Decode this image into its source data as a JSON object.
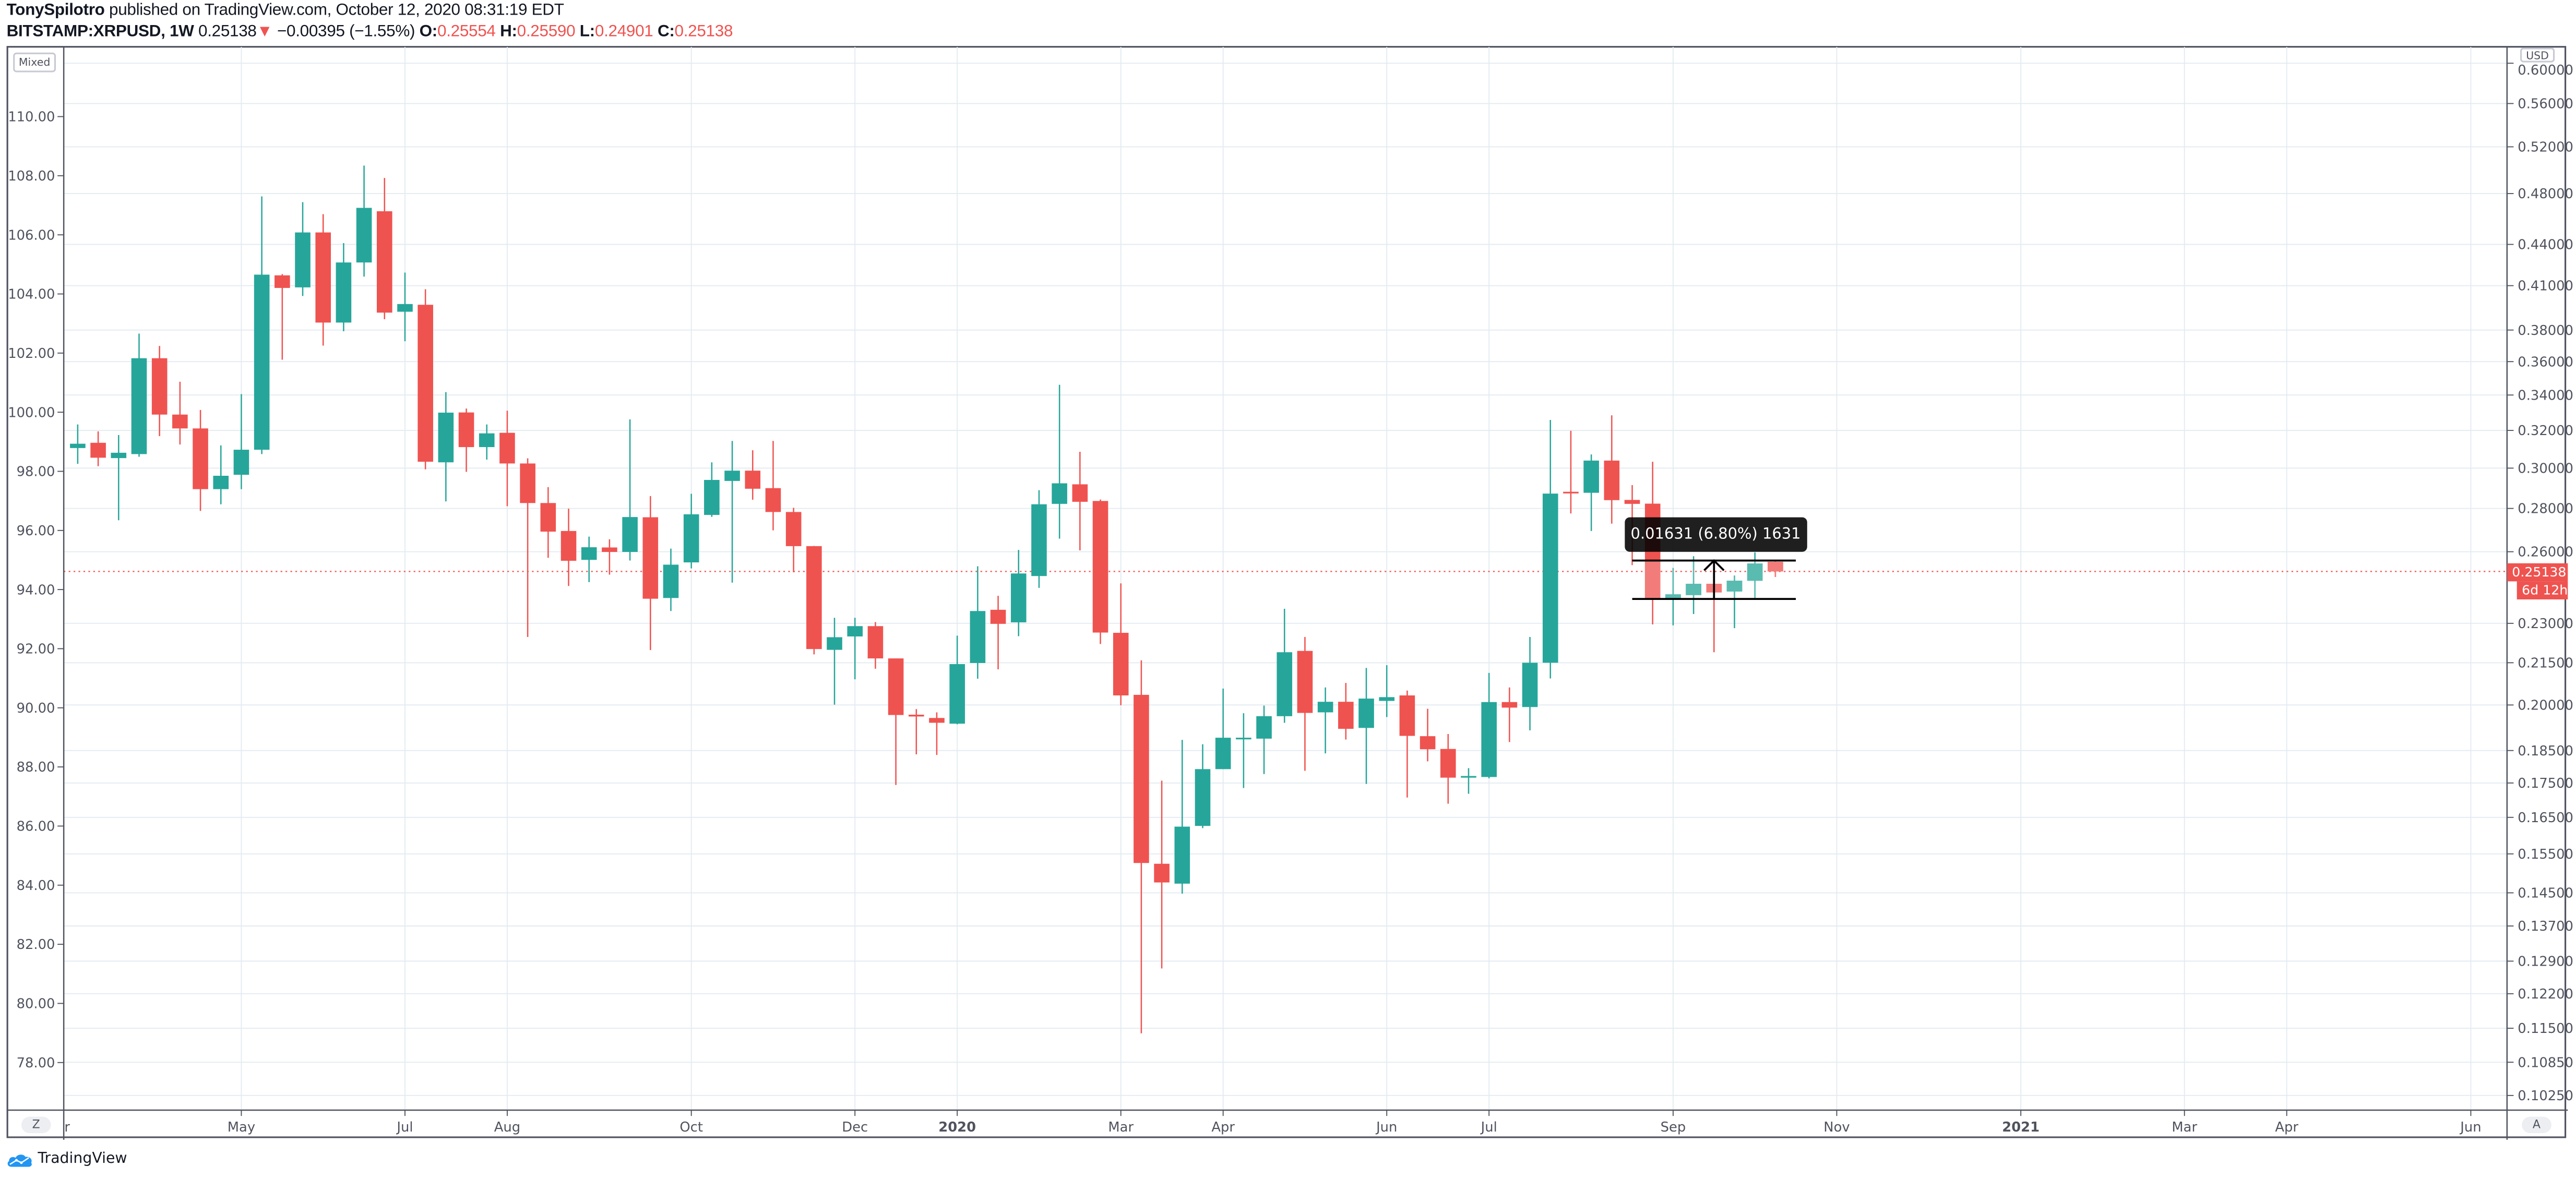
{
  "header": {
    "author": "TonySpilotro",
    "published": " published on TradingView.com, October 12, 2020 08:31:19 EDT",
    "symbol": "BITSTAMP:XRPUSD, 1W",
    "last": "0.25138",
    "direction_icon": "▼",
    "change": "−0.00395 (−1.55%)",
    "ohlc": [
      {
        "label": "O:",
        "value": "0.25554"
      },
      {
        "label": "H:",
        "value": "0.25590"
      },
      {
        "label": "L:",
        "value": "0.24901"
      },
      {
        "label": "C:",
        "value": "0.25138"
      }
    ]
  },
  "left_scale": {
    "mode_label": "Mixed",
    "ticks": [
      "110.00",
      "108.00",
      "106.00",
      "104.00",
      "102.00",
      "100.00",
      "98.00",
      "96.00",
      "94.00",
      "92.00",
      "90.00",
      "88.00",
      "86.00",
      "84.00",
      "82.00",
      "80.00",
      "78.00"
    ],
    "reset_button": "Z"
  },
  "right_scale": {
    "currency_label": "USD",
    "ticks": [
      "0.60000",
      "0.56000",
      "0.52000",
      "0.48000",
      "0.44000",
      "0.41000",
      "0.38000",
      "0.36000",
      "0.34000",
      "0.32000",
      "0.30000",
      "0.28000",
      "0.26000",
      "0.23000",
      "0.21500",
      "0.20000",
      "0.18500",
      "0.17500",
      "0.16500",
      "0.15500",
      "0.14500",
      "0.13700",
      "0.12900",
      "0.12200",
      "0.11500",
      "0.10850",
      "0.10250"
    ],
    "last_price_label": "0.25138",
    "countdown_label": "6d 12h",
    "auto_button": "A"
  },
  "time_axis": {
    "ticks": [
      {
        "label": "Mar",
        "date": "2019-03-04",
        "bold": false
      },
      {
        "label": "May",
        "date": "2019-05-06",
        "bold": false
      },
      {
        "label": "Jul",
        "date": "2019-07-01",
        "bold": false
      },
      {
        "label": "Aug",
        "date": "2019-08-05",
        "bold": false
      },
      {
        "label": "Oct",
        "date": "2019-10-07",
        "bold": false
      },
      {
        "label": "Dec",
        "date": "2019-12-02",
        "bold": false
      },
      {
        "label": "2020",
        "date": "2020-01-06",
        "bold": true
      },
      {
        "label": "Mar",
        "date": "2020-03-02",
        "bold": false
      },
      {
        "label": "Apr",
        "date": "2020-04-06",
        "bold": false
      },
      {
        "label": "Jun",
        "date": "2020-06-01",
        "bold": false
      },
      {
        "label": "Jul",
        "date": "2020-07-06",
        "bold": false
      },
      {
        "label": "Sep",
        "date": "2020-09-07",
        "bold": false
      },
      {
        "label": "Nov",
        "date": "2020-11-02",
        "bold": false
      },
      {
        "label": "2021",
        "date": "2021-01-04",
        "bold": true
      },
      {
        "label": "Mar",
        "date": "2021-03-01",
        "bold": false
      },
      {
        "label": "Apr",
        "date": "2021-04-05",
        "bold": false
      },
      {
        "label": "Jun",
        "date": "2021-06-07",
        "bold": false
      }
    ]
  },
  "measure": {
    "label": "0.01631 (6.80%) 1631",
    "from_date": "2020-08-24",
    "to_date": "2020-10-19",
    "low_price": 0.2398,
    "high_price": 0.2561
  },
  "colors": {
    "up": "#26a69a",
    "down": "#ef5350",
    "up_faded": "#5abbb1",
    "down_faded": "#f27c79",
    "grid": "#e3ebf1",
    "axis_text": "#50535e",
    "last_price": "#ef5350"
  },
  "footer": {
    "brand": "TradingView"
  },
  "chart_data": {
    "type": "candlestick",
    "symbol": "BITSTAMP:XRPUSD",
    "interval": "1W",
    "y_scale": "log",
    "ylim": [
      0.1,
      0.605
    ],
    "grid": true,
    "last_price": 0.25138,
    "columns": [
      "date",
      "open",
      "high",
      "low",
      "close"
    ],
    "candles": [
      [
        "2019-03-11",
        0.3105,
        0.3233,
        0.3022,
        0.3128
      ],
      [
        "2019-03-18",
        0.3133,
        0.3195,
        0.301,
        0.3054
      ],
      [
        "2019-03-25",
        0.3052,
        0.3175,
        0.2744,
        0.308
      ],
      [
        "2019-04-01",
        0.3073,
        0.3777,
        0.3059,
        0.3621
      ],
      [
        "2019-04-08",
        0.3621,
        0.3698,
        0.3169,
        0.3288
      ],
      [
        "2019-04-15",
        0.3288,
        0.3478,
        0.3124,
        0.3211
      ],
      [
        "2019-04-22",
        0.3211,
        0.3314,
        0.2788,
        0.2894
      ],
      [
        "2019-04-29",
        0.2894,
        0.3119,
        0.282,
        0.2961
      ],
      [
        "2019-05-06",
        0.2966,
        0.3405,
        0.2894,
        0.3096
      ],
      [
        "2019-05-13",
        0.3096,
        0.4777,
        0.3073,
        0.4178
      ],
      [
        "2019-05-20",
        0.4173,
        0.4182,
        0.3612,
        0.4084
      ],
      [
        "2019-05-27",
        0.4088,
        0.473,
        0.4028,
        0.4491
      ],
      [
        "2019-06-03",
        0.4491,
        0.4634,
        0.37,
        0.3849
      ],
      [
        "2019-06-10",
        0.3849,
        0.441,
        0.3792,
        0.4266
      ],
      [
        "2019-06-17",
        0.4266,
        0.5036,
        0.4164,
        0.4684
      ],
      [
        "2019-06-24",
        0.4657,
        0.493,
        0.3871,
        0.3915
      ],
      [
        "2019-07-01",
        0.3921,
        0.4193,
        0.3728,
        0.3973
      ],
      [
        "2019-07-08",
        0.3968,
        0.4075,
        0.2994,
        0.3033
      ],
      [
        "2019-07-15",
        0.303,
        0.3417,
        0.2834,
        0.3299
      ],
      [
        "2019-07-22",
        0.33,
        0.3322,
        0.2981,
        0.311
      ],
      [
        "2019-07-29",
        0.311,
        0.3233,
        0.3044,
        0.3184
      ],
      [
        "2019-08-05",
        0.3187,
        0.331,
        0.2811,
        0.3024
      ],
      [
        "2019-08-12",
        0.3024,
        0.3051,
        0.2247,
        0.2826
      ],
      [
        "2019-08-19",
        0.2826,
        0.2904,
        0.2573,
        0.2691
      ],
      [
        "2019-08-26",
        0.2694,
        0.2799,
        0.2452,
        0.256
      ],
      [
        "2019-09-02",
        0.2564,
        0.2668,
        0.2468,
        0.262
      ],
      [
        "2019-09-09",
        0.2619,
        0.2656,
        0.25,
        0.2599
      ],
      [
        "2019-09-16",
        0.2599,
        0.3261,
        0.2561,
        0.2759
      ],
      [
        "2019-09-23",
        0.2758,
        0.286,
        0.2197,
        0.2399
      ],
      [
        "2019-09-30",
        0.2402,
        0.2614,
        0.2349,
        0.2543
      ],
      [
        "2019-10-07",
        0.2553,
        0.2871,
        0.2527,
        0.2772
      ],
      [
        "2019-10-14",
        0.2769,
        0.303,
        0.276,
        0.294
      ],
      [
        "2019-10-21",
        0.2935,
        0.3143,
        0.2466,
        0.2987
      ],
      [
        "2019-10-28",
        0.2987,
        0.3093,
        0.2842,
        0.2896
      ],
      [
        "2019-11-04",
        0.2899,
        0.3143,
        0.2697,
        0.2783
      ],
      [
        "2019-11-11",
        0.2783,
        0.2803,
        0.251,
        0.2625
      ],
      [
        "2019-11-18",
        0.2625,
        0.2626,
        0.2181,
        0.2201
      ],
      [
        "2019-11-25",
        0.2198,
        0.2322,
        0.2001,
        0.2246
      ],
      [
        "2019-12-02",
        0.2249,
        0.2322,
        0.209,
        0.2289
      ],
      [
        "2019-12-09",
        0.2289,
        0.2305,
        0.2128,
        0.2166
      ],
      [
        "2019-12-16",
        0.2166,
        0.2166,
        0.1744,
        0.1966
      ],
      [
        "2019-12-23",
        0.1967,
        0.1986,
        0.1838,
        0.1961
      ],
      [
        "2019-12-30",
        0.1956,
        0.1975,
        0.1836,
        0.194
      ],
      [
        "2020-01-06",
        0.1937,
        0.2252,
        0.1935,
        0.2145
      ],
      [
        "2020-01-13",
        0.2149,
        0.2536,
        0.2092,
        0.2349
      ],
      [
        "2020-01-20",
        0.2354,
        0.2411,
        0.2126,
        0.2298
      ],
      [
        "2020-01-27",
        0.2304,
        0.2608,
        0.225,
        0.2505
      ],
      [
        "2020-02-03",
        0.2494,
        0.2889,
        0.2444,
        0.282
      ],
      [
        "2020-02-10",
        0.2822,
        0.346,
        0.2659,
        0.2923
      ],
      [
        "2020-02-17",
        0.2918,
        0.3085,
        0.2606,
        0.2832
      ],
      [
        "2020-02-24",
        0.2836,
        0.2843,
        0.222,
        0.2264
      ],
      [
        "2020-03-02",
        0.2263,
        0.2463,
        0.1999,
        0.2033
      ],
      [
        "2020-03-09",
        0.2035,
        0.2159,
        0.114,
        0.1526
      ],
      [
        "2020-03-16",
        0.1524,
        0.1757,
        0.1274,
        0.1476
      ],
      [
        "2020-03-23",
        0.1473,
        0.1884,
        0.1448,
        0.1624
      ],
      [
        "2020-03-30",
        0.1626,
        0.187,
        0.162,
        0.1792
      ],
      [
        "2020-04-06",
        0.1792,
        0.2057,
        0.1792,
        0.1891
      ],
      [
        "2020-04-13",
        0.1888,
        0.1972,
        0.1735,
        0.1891
      ],
      [
        "2020-04-20",
        0.1888,
        0.1998,
        0.1777,
        0.1962
      ],
      [
        "2020-04-27",
        0.1962,
        0.2358,
        0.194,
        0.2189
      ],
      [
        "2020-05-04",
        0.2194,
        0.2247,
        0.1787,
        0.1973
      ],
      [
        "2020-05-11",
        0.1975,
        0.2061,
        0.1841,
        0.2011
      ],
      [
        "2020-05-18",
        0.2011,
        0.2077,
        0.1885,
        0.192
      ],
      [
        "2020-05-25",
        0.1923,
        0.2131,
        0.1747,
        0.2022
      ],
      [
        "2020-06-01",
        0.2014,
        0.2141,
        0.1959,
        0.2027
      ],
      [
        "2020-06-08",
        0.2033,
        0.205,
        0.1707,
        0.1897
      ],
      [
        "2020-06-15",
        0.1896,
        0.1987,
        0.1816,
        0.1854
      ],
      [
        "2020-06-22",
        0.1855,
        0.1903,
        0.1689,
        0.1766
      ],
      [
        "2020-06-29",
        0.1767,
        0.1795,
        0.1718,
        0.1771
      ],
      [
        "2020-07-06",
        0.1768,
        0.2113,
        0.1764,
        0.201
      ],
      [
        "2020-07-13",
        0.201,
        0.2061,
        0.1877,
        0.1991
      ],
      [
        "2020-07-20",
        0.1993,
        0.2247,
        0.1915,
        0.215
      ],
      [
        "2020-07-27",
        0.215,
        0.3258,
        0.2093,
        0.2872
      ],
      [
        "2020-08-03",
        0.2881,
        0.3198,
        0.2776,
        0.2874
      ],
      [
        "2020-08-10",
        0.2876,
        0.3071,
        0.2694,
        0.3039
      ],
      [
        "2020-08-17",
        0.3039,
        0.3284,
        0.2728,
        0.284
      ],
      [
        "2020-08-24",
        0.2841,
        0.2914,
        0.2541,
        0.2822
      ],
      [
        "2020-08-31",
        0.2823,
        0.3033,
        0.2296,
        0.2397
      ],
      [
        "2020-09-07",
        0.2398,
        0.2529,
        0.2292,
        0.2417
      ],
      [
        "2020-09-14",
        0.2414,
        0.258,
        0.2337,
        0.2461
      ],
      [
        "2020-09-21",
        0.2461,
        0.247,
        0.2189,
        0.2425
      ],
      [
        "2020-09-28",
        0.2429,
        0.2496,
        0.2281,
        0.2474
      ],
      [
        "2020-10-05",
        0.2474,
        0.2597,
        0.2397,
        0.2548
      ],
      [
        "2020-10-12",
        0.25554,
        0.2559,
        0.24901,
        0.25138
      ]
    ]
  }
}
